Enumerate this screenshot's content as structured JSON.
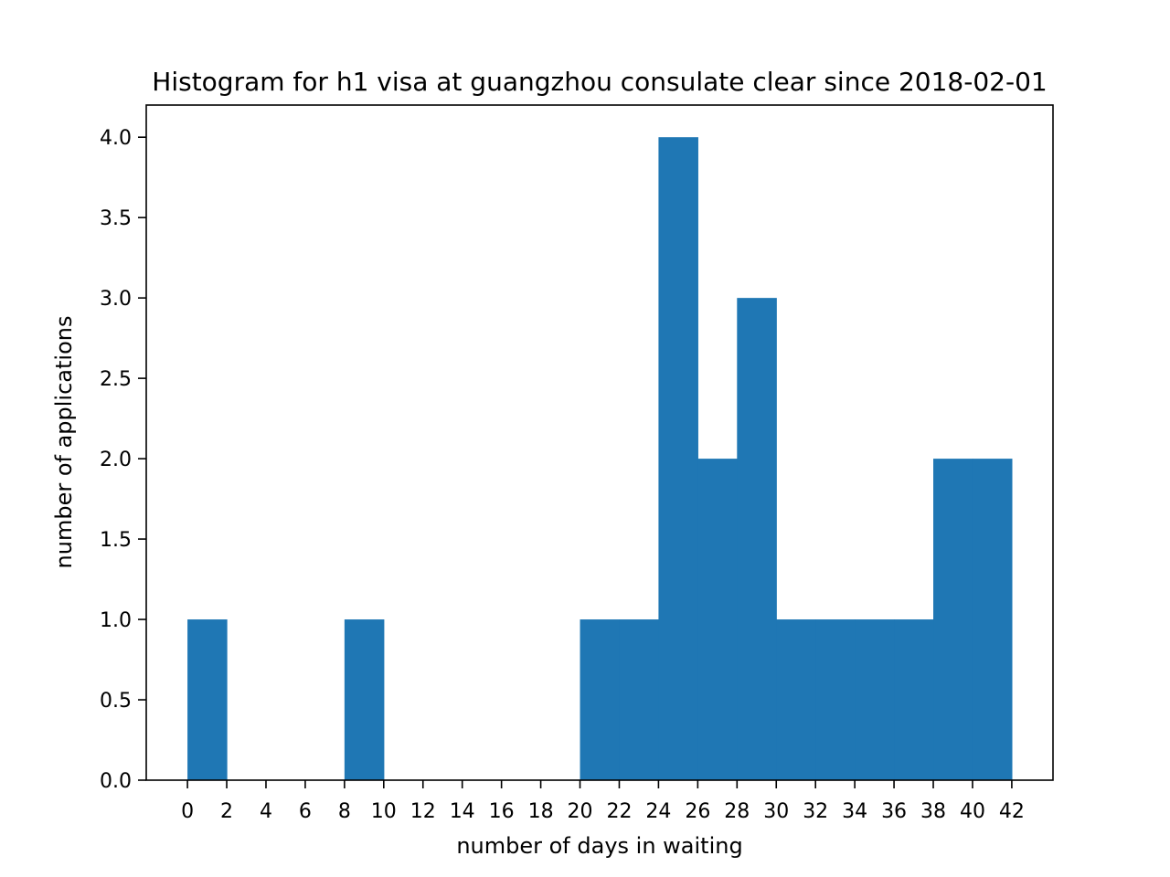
{
  "chart_data": {
    "type": "bar",
    "title": "Histogram for h1 visa at guangzhou consulate clear since 2018-02-01",
    "xlabel": "number of days in waiting",
    "ylabel": "number of applications",
    "bins": [
      {
        "start": 0,
        "end": 2,
        "count": 1
      },
      {
        "start": 2,
        "end": 4,
        "count": 0
      },
      {
        "start": 4,
        "end": 6,
        "count": 0
      },
      {
        "start": 6,
        "end": 8,
        "count": 0
      },
      {
        "start": 8,
        "end": 10,
        "count": 1
      },
      {
        "start": 10,
        "end": 12,
        "count": 0
      },
      {
        "start": 12,
        "end": 14,
        "count": 0
      },
      {
        "start": 14,
        "end": 16,
        "count": 0
      },
      {
        "start": 16,
        "end": 18,
        "count": 0
      },
      {
        "start": 18,
        "end": 20,
        "count": 0
      },
      {
        "start": 20,
        "end": 22,
        "count": 1
      },
      {
        "start": 22,
        "end": 24,
        "count": 1
      },
      {
        "start": 24,
        "end": 26,
        "count": 4
      },
      {
        "start": 26,
        "end": 28,
        "count": 2
      },
      {
        "start": 28,
        "end": 30,
        "count": 3
      },
      {
        "start": 30,
        "end": 32,
        "count": 1
      },
      {
        "start": 32,
        "end": 34,
        "count": 1
      },
      {
        "start": 34,
        "end": 36,
        "count": 1
      },
      {
        "start": 36,
        "end": 38,
        "count": 1
      },
      {
        "start": 38,
        "end": 40,
        "count": 2
      },
      {
        "start": 40,
        "end": 42,
        "count": 2
      }
    ],
    "xlim": [
      -2.1,
      44.1
    ],
    "ylim": [
      0,
      4.2
    ],
    "xticks": [
      0,
      2,
      4,
      6,
      8,
      10,
      12,
      14,
      16,
      18,
      20,
      22,
      24,
      26,
      28,
      30,
      32,
      34,
      36,
      38,
      40,
      42
    ],
    "xtick_labels": [
      "0",
      "2",
      "4",
      "6",
      "8",
      "10",
      "12",
      "14",
      "16",
      "18",
      "20",
      "22",
      "24",
      "26",
      "28",
      "30",
      "32",
      "34",
      "36",
      "38",
      "40",
      "42"
    ],
    "yticks": [
      0,
      0.5,
      1,
      1.5,
      2,
      2.5,
      3,
      3.5,
      4
    ],
    "ytick_labels": [
      "0.0",
      "0.5",
      "1.0",
      "1.5",
      "2.0",
      "2.5",
      "3.0",
      "3.5",
      "4.0"
    ],
    "bar_color": "#1f77b4",
    "grid": false,
    "legend": false
  }
}
